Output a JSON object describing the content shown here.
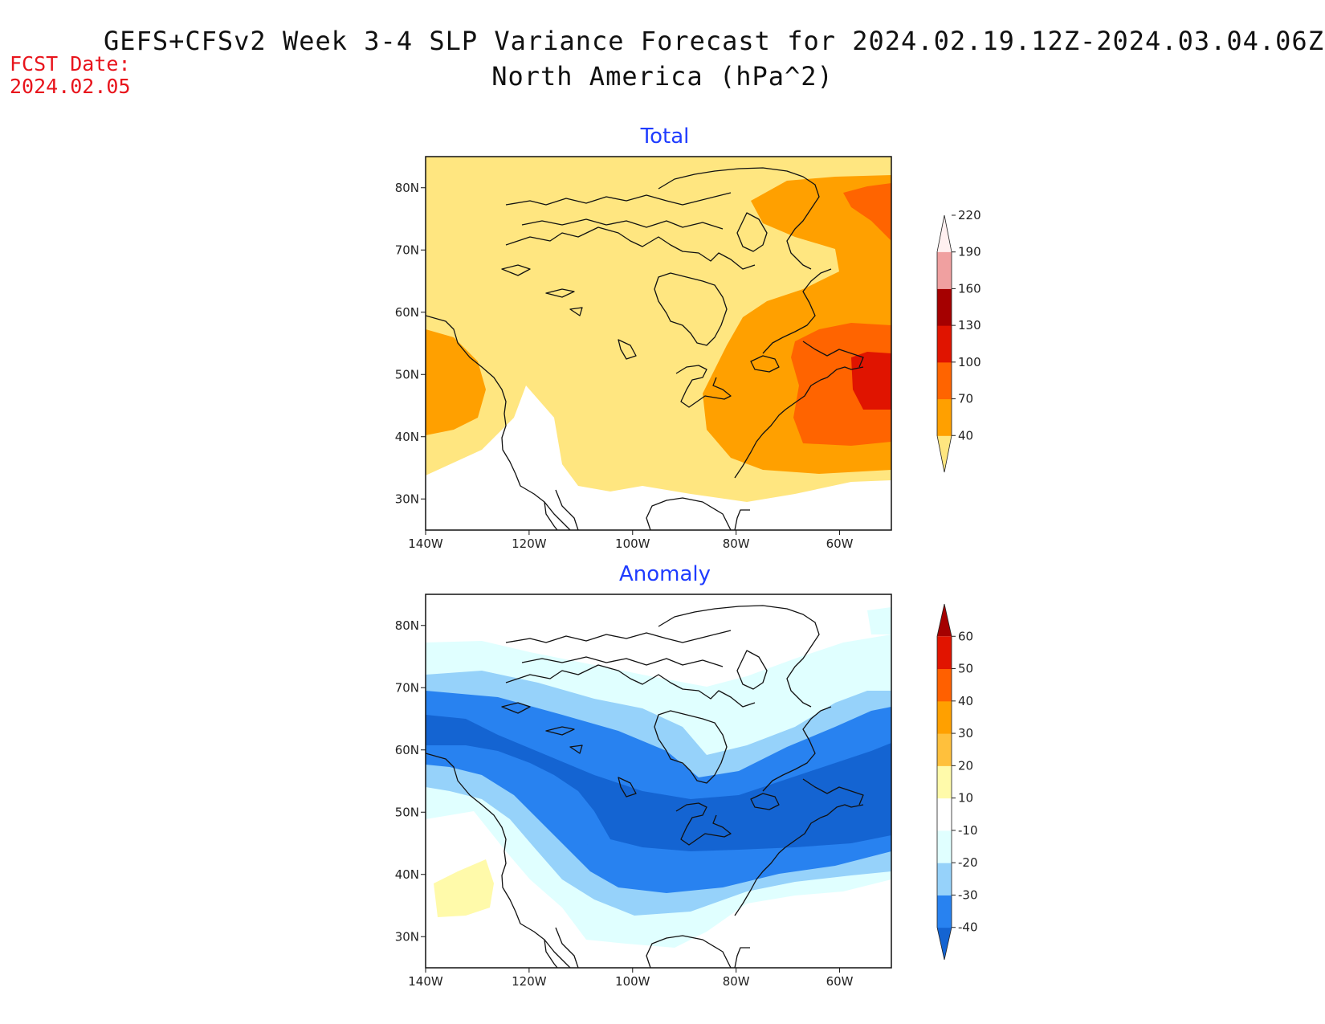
{
  "title": {
    "line1": "GEFS+CFSv2 Week 3-4 SLP Variance Forecast for 2024.02.19.12Z-2024.03.04.06Z",
    "line2": "North America (hPa^2)"
  },
  "forecast_date": {
    "label": "FCST Date:",
    "value": "2024.02.05"
  },
  "map": {
    "lon_range": [
      -140,
      -50
    ],
    "lat_range": [
      25,
      85
    ],
    "lon_ticks": [
      "140W",
      "120W",
      "100W",
      "80W",
      "60W"
    ],
    "lat_ticks": [
      "80N",
      "70N",
      "60N",
      "50N",
      "40N",
      "30N"
    ]
  },
  "panels": [
    {
      "id": "total",
      "title": "Total",
      "colorbar": {
        "labels": [
          "40",
          "70",
          "100",
          "130",
          "160",
          "190",
          "220"
        ],
        "colors": [
          "#ffe680",
          "#ffa000",
          "#ff6400",
          "#e01400",
          "#a50000",
          "#f0a0a0",
          "#fff0f0"
        ]
      }
    },
    {
      "id": "anomaly",
      "title": "Anomaly",
      "colorbar": {
        "labels": [
          "-40",
          "-30",
          "-20",
          "-10",
          "10",
          "20",
          "30",
          "40",
          "50",
          "60"
        ],
        "colors": [
          "#1464d2",
          "#2882f0",
          "#96d2fa",
          "#e0ffff",
          "#ffffff",
          "#fffaaa",
          "#ffc03c",
          "#ffa000",
          "#ff6000",
          "#e11400",
          "#a50000"
        ]
      }
    }
  ]
}
